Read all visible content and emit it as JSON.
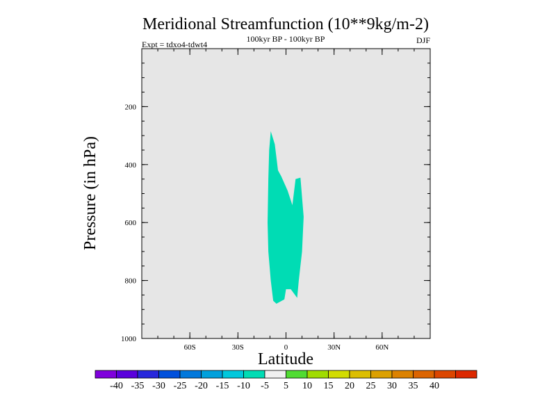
{
  "chart_data": {
    "type": "contour",
    "title": "Meridional Streamfunction (10**9kg/m-2)",
    "subtitle": "100kyr BP - 100kyr BP",
    "left_label": "Expt = tdxo4-tdwt4",
    "right_label": "DJF",
    "xlabel": "Latitude",
    "ylabel": "Pressure (in hPa)",
    "xlim": [
      -90,
      90
    ],
    "ylim": [
      1000,
      0
    ],
    "x_ticks": [
      {
        "value": -60,
        "label": "60S"
      },
      {
        "value": -30,
        "label": "30S"
      },
      {
        "value": 0,
        "label": "0"
      },
      {
        "value": 30,
        "label": "30N"
      },
      {
        "value": 60,
        "label": "60N"
      }
    ],
    "y_ticks": [
      {
        "value": 200,
        "label": "200"
      },
      {
        "value": 400,
        "label": "400"
      },
      {
        "value": 600,
        "label": "600"
      },
      {
        "value": 800,
        "label": "800"
      },
      {
        "value": 1000,
        "label": "1000"
      }
    ],
    "background_color": "#e6e6e6",
    "filled_regions": [
      {
        "level_range": [
          -10,
          -5
        ],
        "color": "#00dcb4",
        "points": [
          [
            -9.5,
            285
          ],
          [
            -7,
            330
          ],
          [
            -5,
            420
          ],
          [
            -3,
            440
          ],
          [
            1,
            490
          ],
          [
            4,
            540
          ],
          [
            6,
            450
          ],
          [
            9,
            445
          ],
          [
            11,
            580
          ],
          [
            10,
            700
          ],
          [
            8,
            800
          ],
          [
            7,
            860
          ],
          [
            3,
            830
          ],
          [
            0,
            830
          ],
          [
            -1,
            865
          ],
          [
            -6,
            880
          ],
          [
            -8,
            870
          ],
          [
            -9.5,
            800
          ],
          [
            -11,
            700
          ],
          [
            -11.5,
            600
          ],
          [
            -11,
            450
          ],
          [
            -10.5,
            350
          ]
        ]
      }
    ],
    "colorbar": {
      "colors": [
        "#7f00dc",
        "#5a00dc",
        "#2828dc",
        "#0050dc",
        "#0078dc",
        "#00a0dc",
        "#00c8dc",
        "#00dcb4",
        "#f0f0f0",
        "#50dc32",
        "#a0dc00",
        "#d2dc00",
        "#dcbe00",
        "#dca000",
        "#dc8200",
        "#dc6400",
        "#dc4600",
        "#dc2800"
      ],
      "labels": [
        "-40",
        "-35",
        "-30",
        "-25",
        "-20",
        "-15",
        "-10",
        "-5",
        "5",
        "10",
        "15",
        "20",
        "25",
        "30",
        "35",
        "40"
      ]
    }
  }
}
